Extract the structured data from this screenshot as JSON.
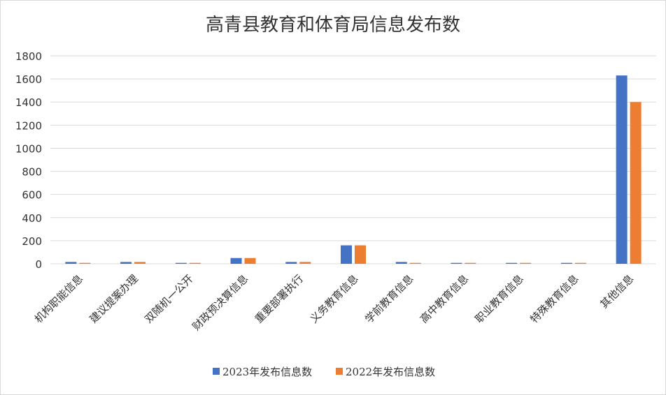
{
  "chart_data": {
    "type": "bar",
    "title": "高青县教育和体育局信息发布数",
    "categories": [
      "机构职能信息",
      "建议提案办理",
      "双随机一公开",
      "财政预决算信息",
      "重要部署执行",
      "义务教育信息",
      "学前教育信息",
      "高中教育信息",
      "职业教育信息",
      "特殊教育信息",
      "其他信息"
    ],
    "series": [
      {
        "name": "2023年发布信息数",
        "color": "#4472C4",
        "values": [
          16,
          16,
          8,
          50,
          16,
          160,
          16,
          8,
          8,
          8,
          1630
        ]
      },
      {
        "name": "2022年发布信息数",
        "color": "#ED7D31",
        "values": [
          8,
          16,
          8,
          50,
          16,
          160,
          8,
          8,
          8,
          8,
          1400
        ]
      }
    ],
    "ylim": [
      0,
      1800
    ],
    "yticks": [
      0,
      200,
      400,
      600,
      800,
      1000,
      1200,
      1400,
      1600,
      1800
    ],
    "grid": true,
    "legend": "bottom"
  }
}
